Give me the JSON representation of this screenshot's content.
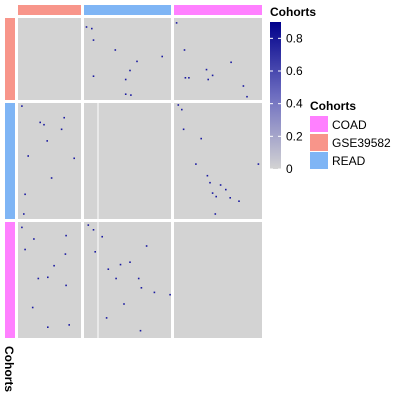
{
  "chart_data": {
    "type": "heatmap",
    "row_annotation_title": "Cohorts",
    "column_annotation_title": "Cohorts",
    "blocks": [
      "GSE39582",
      "READ",
      "COAD"
    ],
    "block_colors": {
      "GSE39582": "#F8958A",
      "READ": "#7FB5F5",
      "COAD": "#FF80FF"
    },
    "background_color": "#D3D3D3",
    "separator_color": "#FFFFFF",
    "color_scale": {
      "title": "Cohorts",
      "min": 0,
      "max": 0.9,
      "ticks": [
        "0",
        "0.2",
        "0.4",
        "0.6",
        "0.8"
      ],
      "tick_values": [
        0,
        0.2,
        0.4,
        0.6,
        0.8
      ],
      "low_color": "#D3D3D3",
      "high_color": "#00008B"
    },
    "categorical_legend": {
      "title": "Cohorts",
      "items": [
        {
          "label": "COAD",
          "color": "#FF80FF"
        },
        {
          "label": "GSE39582",
          "color": "#F8958A"
        },
        {
          "label": "READ",
          "color": "#7FB5F5"
        }
      ]
    },
    "points": [
      {
        "r": "GSE39582",
        "c": "READ",
        "fx": 0.02,
        "fy": 0.1,
        "v": 0.9
      },
      {
        "r": "GSE39582",
        "c": "READ",
        "fx": 0.08,
        "fy": 0.12,
        "v": 0.9
      },
      {
        "r": "GSE39582",
        "c": "READ",
        "fx": 0.1,
        "fy": 0.26,
        "v": 0.9
      },
      {
        "r": "GSE39582",
        "c": "READ",
        "fx": 0.35,
        "fy": 0.38,
        "v": 0.9
      },
      {
        "r": "GSE39582",
        "c": "READ",
        "fx": 0.52,
        "fy": 0.63,
        "v": 0.9
      },
      {
        "r": "GSE39582",
        "c": "READ",
        "fx": 0.6,
        "fy": 0.52,
        "v": 0.9
      },
      {
        "r": "GSE39582",
        "c": "READ",
        "fx": 0.89,
        "fy": 0.46,
        "v": 0.9
      },
      {
        "r": "GSE39582",
        "c": "READ",
        "fx": 0.47,
        "fy": 0.74,
        "v": 0.9
      },
      {
        "r": "GSE39582",
        "c": "READ",
        "fx": 0.1,
        "fy": 0.7,
        "v": 0.9
      },
      {
        "r": "GSE39582",
        "c": "READ",
        "fx": 0.47,
        "fy": 0.92,
        "v": 0.9
      },
      {
        "r": "GSE39582",
        "c": "READ",
        "fx": 0.53,
        "fy": 0.93,
        "v": 0.9
      },
      {
        "r": "GSE39582",
        "c": "COAD",
        "fx": 0.02,
        "fy": 0.05,
        "v": 0.9
      },
      {
        "r": "GSE39582",
        "c": "COAD",
        "fx": 0.11,
        "fy": 0.38,
        "v": 0.9
      },
      {
        "r": "GSE39582",
        "c": "COAD",
        "fx": 0.16,
        "fy": 0.72,
        "v": 0.9
      },
      {
        "r": "GSE39582",
        "c": "COAD",
        "fx": 0.12,
        "fy": 0.72,
        "v": 0.9
      },
      {
        "r": "GSE39582",
        "c": "COAD",
        "fx": 0.36,
        "fy": 0.62,
        "v": 0.9
      },
      {
        "r": "GSE39582",
        "c": "COAD",
        "fx": 0.43,
        "fy": 0.69,
        "v": 0.9
      },
      {
        "r": "GSE39582",
        "c": "COAD",
        "fx": 0.38,
        "fy": 0.74,
        "v": 0.9
      },
      {
        "r": "GSE39582",
        "c": "COAD",
        "fx": 0.64,
        "fy": 0.53,
        "v": 0.9
      },
      {
        "r": "GSE39582",
        "c": "COAD",
        "fx": 0.78,
        "fy": 0.82,
        "v": 0.9
      },
      {
        "r": "GSE39582",
        "c": "COAD",
        "fx": 0.82,
        "fy": 0.95,
        "v": 0.9
      },
      {
        "r": "READ",
        "c": "GSE39582",
        "fx": 0.05,
        "fy": 0.02,
        "v": 0.9
      },
      {
        "r": "READ",
        "c": "GSE39582",
        "fx": 0.34,
        "fy": 0.16,
        "v": 0.9
      },
      {
        "r": "READ",
        "c": "GSE39582",
        "fx": 0.4,
        "fy": 0.18,
        "v": 0.9
      },
      {
        "r": "READ",
        "c": "GSE39582",
        "fx": 0.72,
        "fy": 0.12,
        "v": 0.9
      },
      {
        "r": "READ",
        "c": "GSE39582",
        "fx": 0.68,
        "fy": 0.22,
        "v": 0.9
      },
      {
        "r": "READ",
        "c": "GSE39582",
        "fx": 0.45,
        "fy": 0.32,
        "v": 0.9
      },
      {
        "r": "READ",
        "c": "GSE39582",
        "fx": 0.15,
        "fy": 0.45,
        "v": 0.9
      },
      {
        "r": "READ",
        "c": "GSE39582",
        "fx": 0.88,
        "fy": 0.47,
        "v": 0.9
      },
      {
        "r": "READ",
        "c": "GSE39582",
        "fx": 0.52,
        "fy": 0.64,
        "v": 0.9
      },
      {
        "r": "READ",
        "c": "GSE39582",
        "fx": 0.1,
        "fy": 0.78,
        "v": 0.9
      },
      {
        "r": "READ",
        "c": "GSE39582",
        "fx": 0.08,
        "fy": 0.95,
        "v": 0.9
      },
      {
        "r": "READ",
        "c": "COAD",
        "fx": 0.04,
        "fy": 0.01,
        "v": 0.9
      },
      {
        "r": "READ",
        "c": "COAD",
        "fx": 0.08,
        "fy": 0.05,
        "v": 0.9
      },
      {
        "r": "READ",
        "c": "COAD",
        "fx": 0.1,
        "fy": 0.22,
        "v": 0.9
      },
      {
        "r": "READ",
        "c": "COAD",
        "fx": 0.3,
        "fy": 0.3,
        "v": 0.9
      },
      {
        "r": "READ",
        "c": "COAD",
        "fx": 0.24,
        "fy": 0.52,
        "v": 0.9
      },
      {
        "r": "READ",
        "c": "COAD",
        "fx": 0.37,
        "fy": 0.62,
        "v": 0.9
      },
      {
        "r": "READ",
        "c": "COAD",
        "fx": 0.4,
        "fy": 0.68,
        "v": 0.9
      },
      {
        "r": "READ",
        "c": "COAD",
        "fx": 0.52,
        "fy": 0.7,
        "v": 0.9
      },
      {
        "r": "READ",
        "c": "COAD",
        "fx": 0.58,
        "fy": 0.74,
        "v": 0.9
      },
      {
        "r": "READ",
        "c": "COAD",
        "fx": 0.43,
        "fy": 0.77,
        "v": 0.9
      },
      {
        "r": "READ",
        "c": "COAD",
        "fx": 0.47,
        "fy": 0.8,
        "v": 0.9
      },
      {
        "r": "READ",
        "c": "COAD",
        "fx": 0.63,
        "fy": 0.81,
        "v": 0.9
      },
      {
        "r": "READ",
        "c": "COAD",
        "fx": 0.73,
        "fy": 0.84,
        "v": 0.9
      },
      {
        "r": "READ",
        "c": "COAD",
        "fx": 0.46,
        "fy": 0.95,
        "v": 0.9
      },
      {
        "r": "READ",
        "c": "COAD",
        "fx": 0.95,
        "fy": 0.52,
        "v": 0.9
      },
      {
        "r": "COAD",
        "c": "GSE39582",
        "fx": 0.05,
        "fy": 0.04,
        "v": 0.9
      },
      {
        "r": "COAD",
        "c": "GSE39582",
        "fx": 0.24,
        "fy": 0.14,
        "v": 0.9
      },
      {
        "r": "COAD",
        "c": "GSE39582",
        "fx": 0.75,
        "fy": 0.11,
        "v": 0.9
      },
      {
        "r": "COAD",
        "c": "GSE39582",
        "fx": 0.1,
        "fy": 0.23,
        "v": 0.9
      },
      {
        "r": "COAD",
        "c": "GSE39582",
        "fx": 0.74,
        "fy": 0.27,
        "v": 0.9
      },
      {
        "r": "COAD",
        "c": "GSE39582",
        "fx": 0.56,
        "fy": 0.37,
        "v": 0.9
      },
      {
        "r": "COAD",
        "c": "GSE39582",
        "fx": 0.46,
        "fy": 0.47,
        "v": 0.9
      },
      {
        "r": "COAD",
        "c": "GSE39582",
        "fx": 0.31,
        "fy": 0.48,
        "v": 0.9
      },
      {
        "r": "COAD",
        "c": "GSE39582",
        "fx": 0.75,
        "fy": 0.54,
        "v": 0.9
      },
      {
        "r": "COAD",
        "c": "GSE39582",
        "fx": 0.22,
        "fy": 0.73,
        "v": 0.9
      },
      {
        "r": "COAD",
        "c": "GSE39582",
        "fx": 0.8,
        "fy": 0.88,
        "v": 0.9
      },
      {
        "r": "COAD",
        "c": "GSE39582",
        "fx": 0.46,
        "fy": 0.9,
        "v": 0.9
      },
      {
        "r": "COAD",
        "c": "READ",
        "fx": 0.04,
        "fy": 0.02,
        "v": 0.9
      },
      {
        "r": "COAD",
        "c": "READ",
        "fx": 0.1,
        "fy": 0.06,
        "v": 0.9
      },
      {
        "r": "COAD",
        "c": "READ",
        "fx": 0.12,
        "fy": 0.25,
        "v": 0.9
      },
      {
        "r": "COAD",
        "c": "READ",
        "fx": 0.2,
        "fy": 0.12,
        "v": 0.9
      },
      {
        "r": "COAD",
        "c": "READ",
        "fx": 0.27,
        "fy": 0.4,
        "v": 0.9
      },
      {
        "r": "COAD",
        "c": "READ",
        "fx": 0.41,
        "fy": 0.36,
        "v": 0.9
      },
      {
        "r": "COAD",
        "c": "READ",
        "fx": 0.36,
        "fy": 0.48,
        "v": 0.9
      },
      {
        "r": "COAD",
        "c": "READ",
        "fx": 0.52,
        "fy": 0.34,
        "v": 0.9
      },
      {
        "r": "COAD",
        "c": "READ",
        "fx": 0.62,
        "fy": 0.48,
        "v": 0.9
      },
      {
        "r": "COAD",
        "c": "READ",
        "fx": 0.65,
        "fy": 0.56,
        "v": 0.9
      },
      {
        "r": "COAD",
        "c": "READ",
        "fx": 0.71,
        "fy": 0.2,
        "v": 0.9
      },
      {
        "r": "COAD",
        "c": "READ",
        "fx": 0.8,
        "fy": 0.6,
        "v": 0.9
      },
      {
        "r": "COAD",
        "c": "READ",
        "fx": 0.45,
        "fy": 0.7,
        "v": 0.9
      },
      {
        "r": "COAD",
        "c": "READ",
        "fx": 0.25,
        "fy": 0.82,
        "v": 0.9
      },
      {
        "r": "COAD",
        "c": "READ",
        "fx": 0.64,
        "fy": 0.93,
        "v": 0.9
      },
      {
        "r": "COAD",
        "c": "READ",
        "fx": 0.98,
        "fy": 0.62,
        "v": 0.9
      }
    ]
  }
}
